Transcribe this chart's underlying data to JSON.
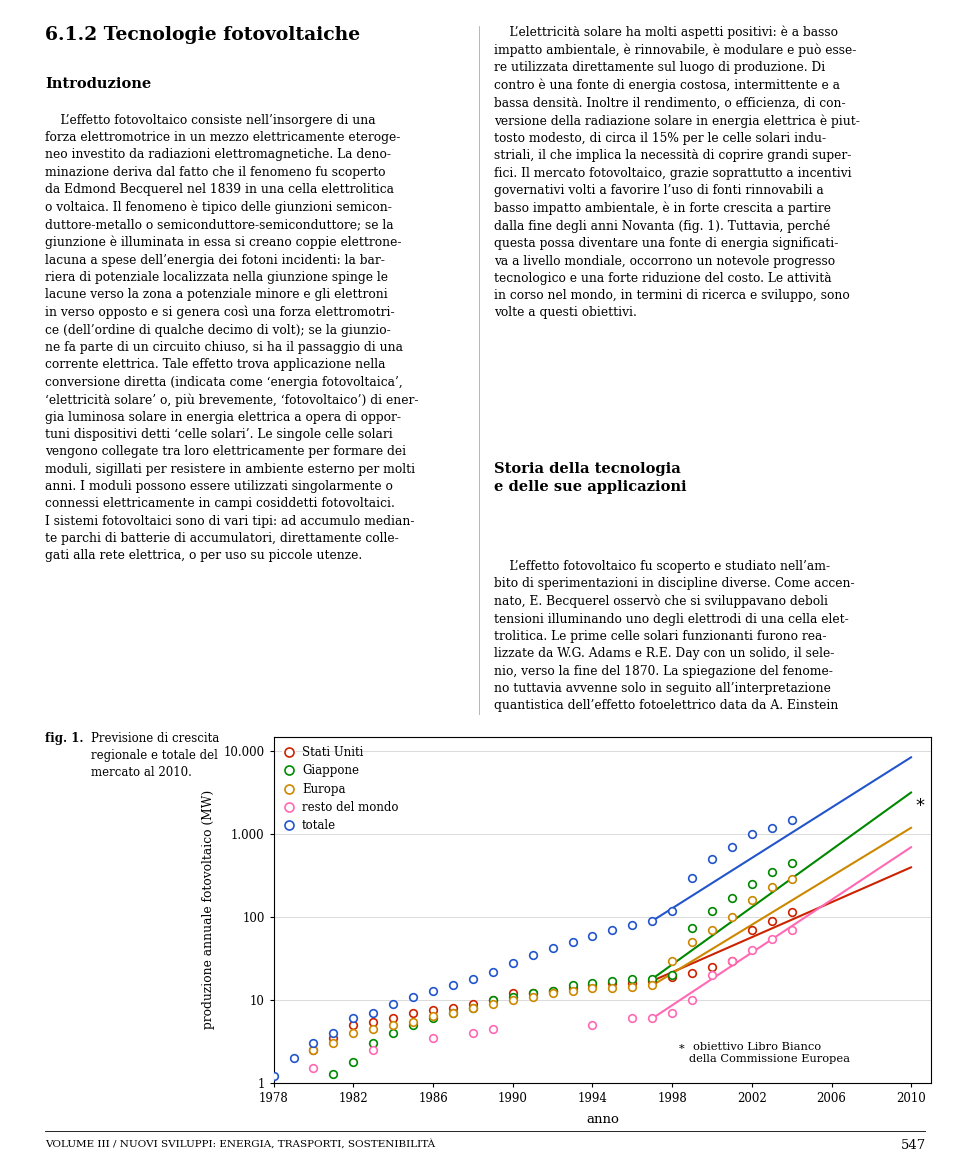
{
  "footer_text": "VOLUME III / NUOVI SVILUPPI: ENERGIA, TRASPORTI, SOSTENIBILITÀ",
  "page_number": "547",
  "fig_bold_label": "fig. 1.",
  "fig_caption": " Previsione di crescita\nregionale e totale del\nmercato al 2010.",
  "ylabel": "produzione annuale fotovoltaico (MW)",
  "xlabel": "anno",
  "ytick_labels": [
    "1",
    "10",
    "100",
    "1.000",
    "10.000"
  ],
  "xticks": [
    1978,
    1982,
    1986,
    1990,
    1994,
    1998,
    2002,
    2006,
    2010
  ],
  "annotation_note": "  obiettivo Libro Bianco\ndella Commissione Europea",
  "series_data": {
    "stati_uniti": {
      "label": "Stati Uniti",
      "color": "#cc2200",
      "years": [
        1980,
        1981,
        1982,
        1983,
        1984,
        1985,
        1986,
        1987,
        1988,
        1989,
        1990,
        1991,
        1992,
        1993,
        1994,
        1995,
        1996,
        1997,
        1998,
        1999,
        2000,
        2001,
        2002,
        2003,
        2004
      ],
      "values": [
        2.5,
        3.5,
        5,
        5.5,
        6,
        7,
        7.5,
        8,
        9,
        10,
        12,
        12,
        13,
        14,
        15,
        16,
        16,
        17,
        19,
        21,
        25,
        30,
        70,
        90,
        115
      ]
    },
    "giappone": {
      "label": "Giappone",
      "color": "#008800",
      "years": [
        1981,
        1982,
        1983,
        1984,
        1985,
        1986,
        1987,
        1988,
        1989,
        1990,
        1991,
        1992,
        1993,
        1994,
        1995,
        1996,
        1997,
        1998,
        1999,
        2000,
        2001,
        2002,
        2003,
        2004
      ],
      "values": [
        1.3,
        1.8,
        3,
        4,
        5,
        6,
        7,
        8,
        10,
        11,
        12,
        13,
        15,
        16,
        17,
        18,
        18,
        20,
        75,
        120,
        170,
        250,
        350,
        450
      ]
    },
    "europa": {
      "label": "Europa",
      "color": "#cc8800",
      "years": [
        1980,
        1981,
        1982,
        1983,
        1984,
        1985,
        1986,
        1987,
        1988,
        1989,
        1990,
        1991,
        1992,
        1993,
        1994,
        1995,
        1996,
        1997,
        1998,
        1999,
        2000,
        2001,
        2002,
        2003,
        2004
      ],
      "values": [
        2.5,
        3,
        4,
        4.5,
        5,
        5.5,
        6.5,
        7,
        8,
        9,
        10,
        11,
        12,
        13,
        14,
        14,
        14.5,
        15,
        30,
        50,
        70,
        100,
        160,
        230,
        290
      ]
    },
    "resto": {
      "label": "resto del mondo",
      "color": "#ff69b4",
      "years": [
        1980,
        1983,
        1986,
        1988,
        1989,
        1994,
        1996,
        1997,
        1998,
        1999,
        2000,
        2001,
        2002,
        2003,
        2004
      ],
      "values": [
        1.5,
        2.5,
        3.5,
        4,
        4.5,
        5,
        6,
        6,
        7,
        10,
        20,
        30,
        40,
        55,
        70
      ]
    },
    "totale": {
      "label": "totale",
      "color": "#2255cc",
      "years": [
        1978,
        1979,
        1980,
        1981,
        1982,
        1983,
        1984,
        1985,
        1986,
        1987,
        1988,
        1989,
        1990,
        1991,
        1992,
        1993,
        1994,
        1995,
        1996,
        1997,
        1998,
        1999,
        2000,
        2001,
        2002,
        2003,
        2004
      ],
      "values": [
        1.2,
        2,
        3,
        4,
        6,
        7,
        9,
        11,
        13,
        15,
        18,
        22,
        28,
        35,
        42,
        50,
        60,
        70,
        80,
        90,
        120,
        300,
        500,
        700,
        1000,
        1200,
        1500
      ]
    }
  },
  "trend_params": {
    "stati_uniti": {
      "color": "#cc2200",
      "x": [
        1997,
        2010
      ],
      "y": [
        17,
        400
      ]
    },
    "giappone": {
      "color": "#008800",
      "x": [
        1997,
        2010
      ],
      "y": [
        18,
        3200
      ]
    },
    "europa": {
      "color": "#cc8800",
      "x": [
        1997,
        2010
      ],
      "y": [
        15,
        1200
      ]
    },
    "resto": {
      "color": "#ff69b4",
      "x": [
        1997,
        2010
      ],
      "y": [
        6,
        700
      ]
    },
    "totale": {
      "color": "#2255cc",
      "x": [
        1997,
        2010
      ],
      "y": [
        90,
        8500
      ]
    }
  }
}
